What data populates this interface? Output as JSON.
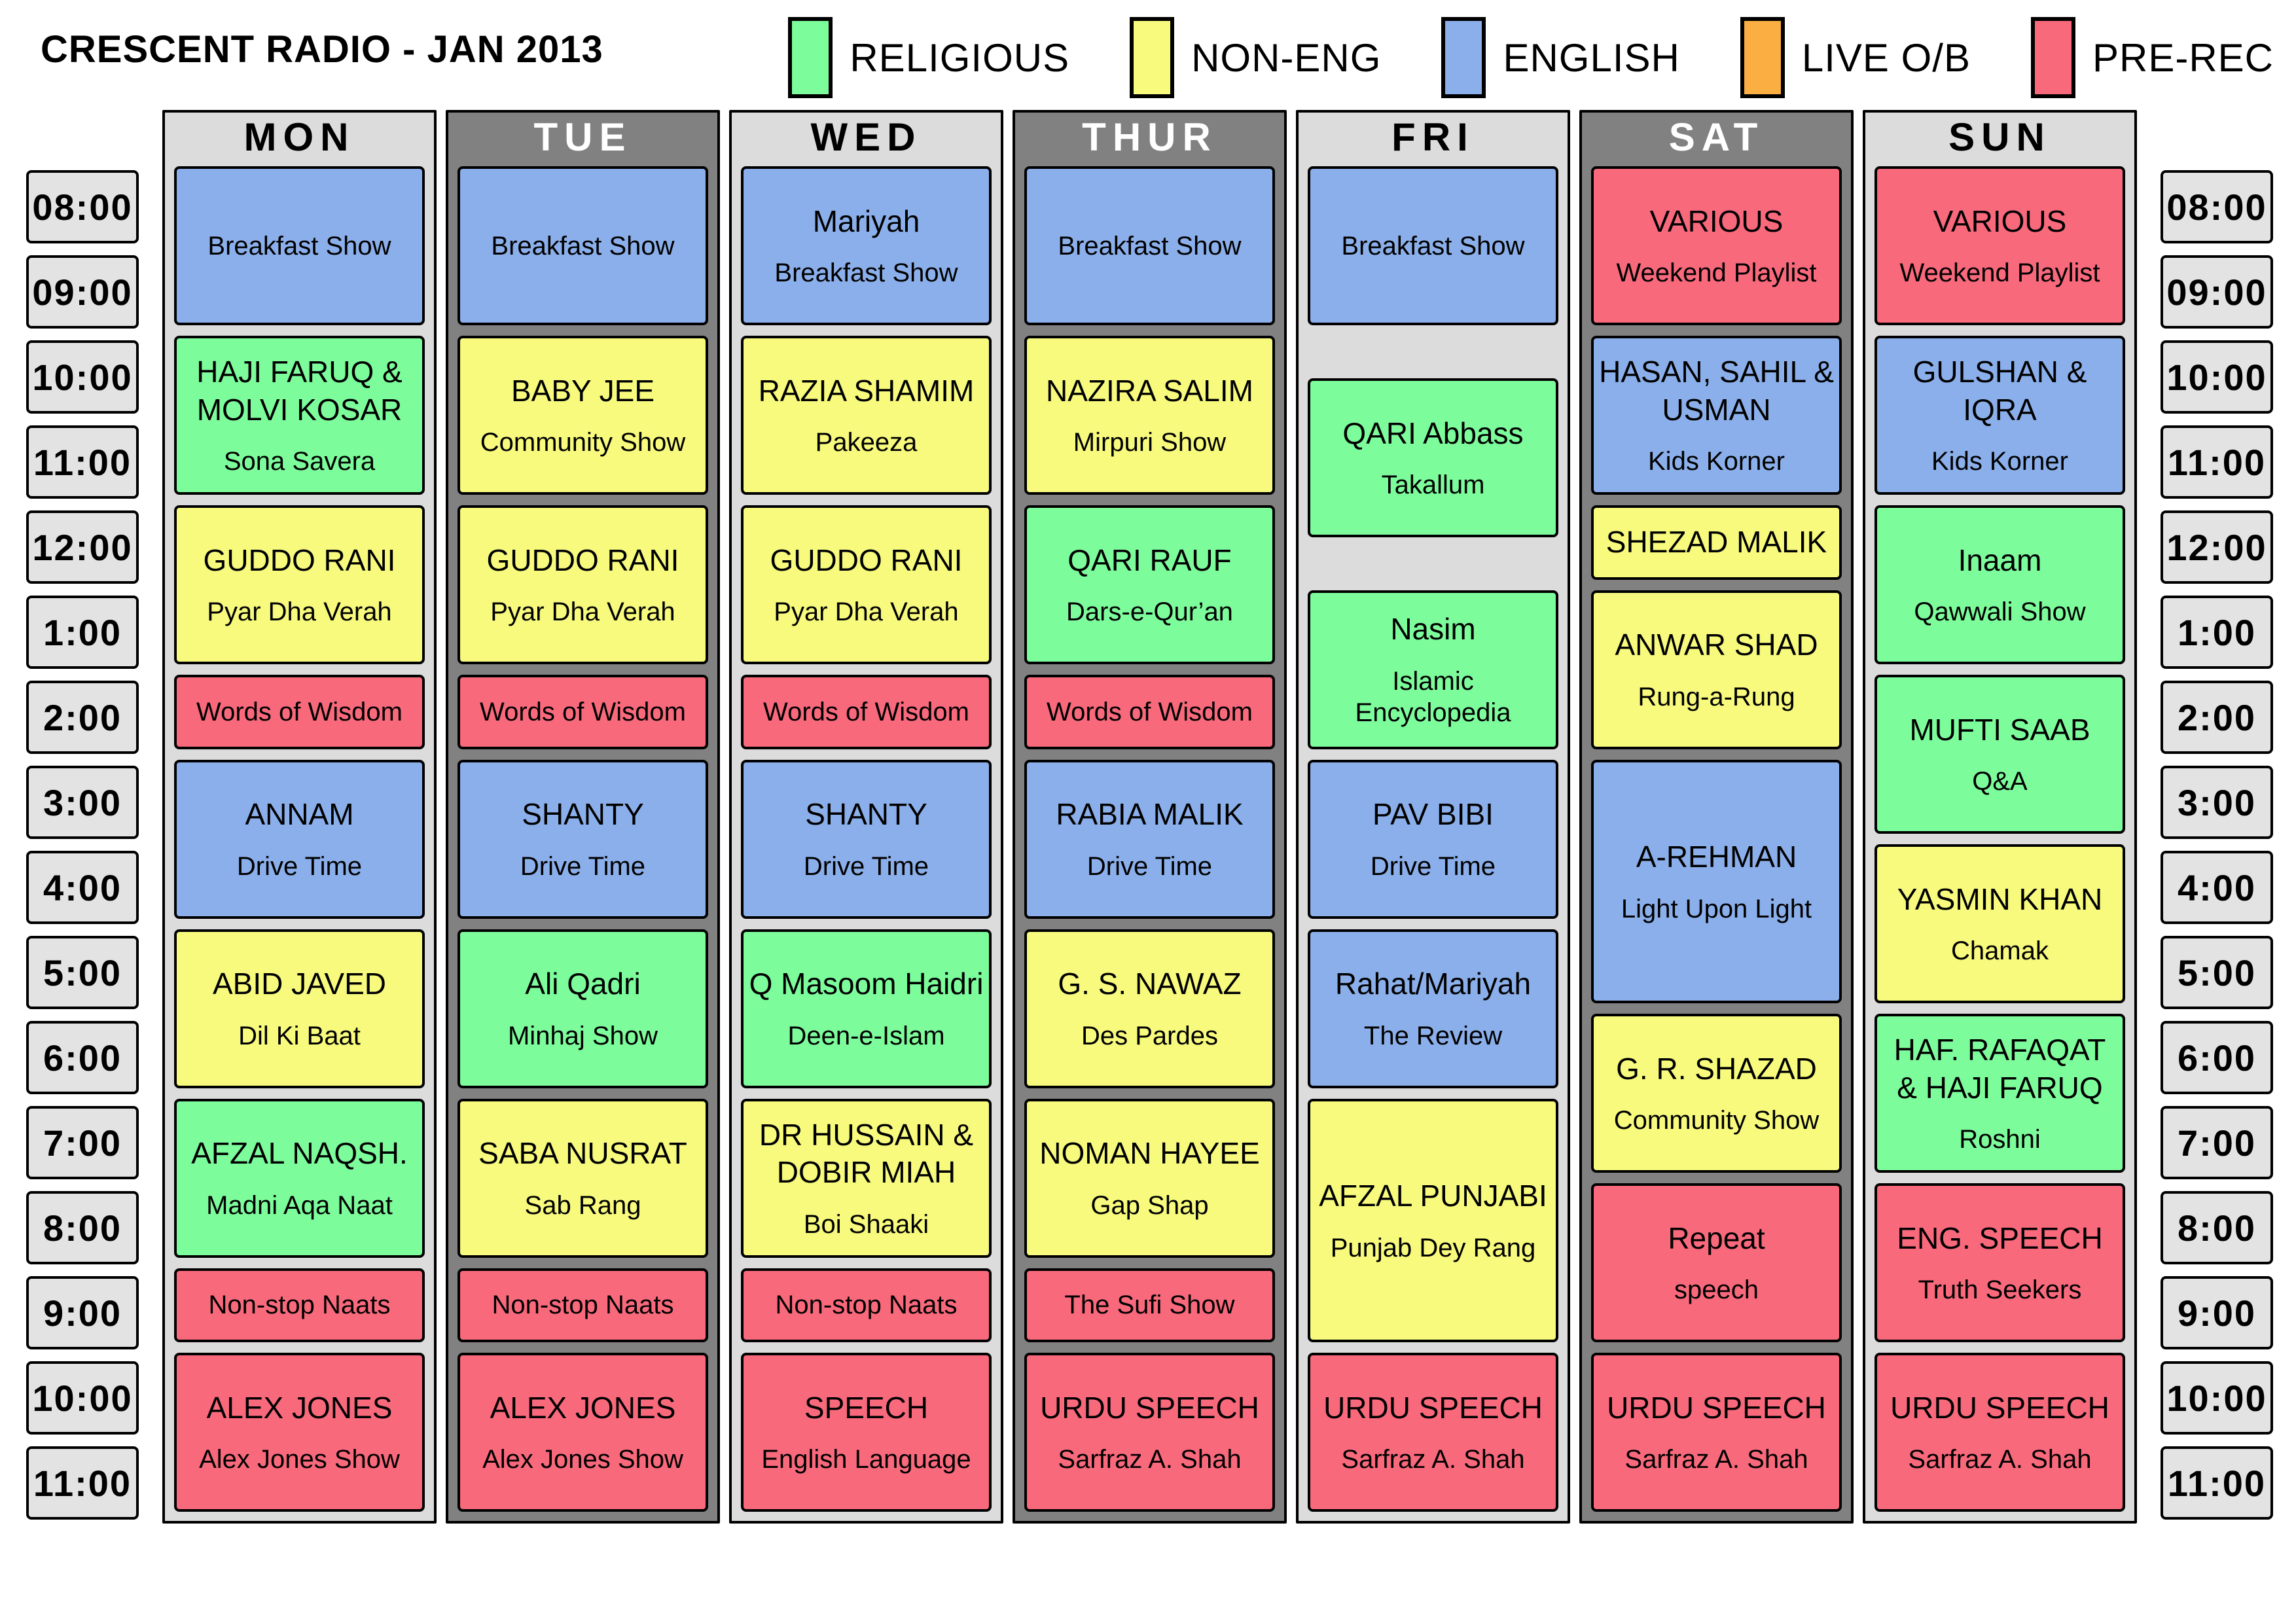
{
  "title": "CRESCENT RADIO - JAN 2013",
  "category_colors": {
    "religious": "#7DFC9C",
    "noneng": "#F7FA7D",
    "english": "#8BAFEA",
    "liveob": "#FBAF42",
    "prerec": "#F8697C"
  },
  "legend": [
    {
      "key": "religious",
      "label": "RELIGIOUS"
    },
    {
      "key": "noneng",
      "label": "NON-ENG"
    },
    {
      "key": "english",
      "label": "ENGLISH"
    },
    {
      "key": "liveob",
      "label": "LIVE O/B"
    },
    {
      "key": "prerec",
      "label": "PRE-REC"
    }
  ],
  "times": [
    "08:00",
    "09:00",
    "10:00",
    "11:00",
    "12:00",
    "1:00",
    "2:00",
    "3:00",
    "4:00",
    "5:00",
    "6:00",
    "7:00",
    "8:00",
    "9:00",
    "10:00",
    "11:00"
  ],
  "days": [
    {
      "label": "MON",
      "shade": "light",
      "shows": [
        {
          "name": "",
          "show": "Breakfast Show",
          "category": "english",
          "start": 1,
          "span": 4
        },
        {
          "name": "HAJI FARUQ & MOLVI KOSAR",
          "show": "Sona Savera",
          "category": "religious",
          "start": 5,
          "span": 4
        },
        {
          "name": "GUDDO RANI",
          "show": "Pyar Dha Verah",
          "category": "noneng",
          "start": 9,
          "span": 4
        },
        {
          "name": "",
          "show": "Words of Wisdom",
          "category": "prerec",
          "start": 13,
          "span": 2
        },
        {
          "name": "ANNAM",
          "show": "Drive Time",
          "category": "english",
          "start": 15,
          "span": 4
        },
        {
          "name": "ABID JAVED",
          "show": "Dil Ki Baat",
          "category": "noneng",
          "start": 19,
          "span": 4
        },
        {
          "name": "AFZAL NAQSH.",
          "show": "Madni Aqa Naat",
          "category": "religious",
          "start": 23,
          "span": 4
        },
        {
          "name": "",
          "show": "Non-stop Naats",
          "category": "prerec",
          "start": 27,
          "span": 2
        },
        {
          "name": "ALEX JONES",
          "show": "Alex Jones Show",
          "category": "prerec",
          "start": 29,
          "span": 4
        }
      ]
    },
    {
      "label": "TUE",
      "shade": "dark",
      "shows": [
        {
          "name": "",
          "show": "Breakfast Show",
          "category": "english",
          "start": 1,
          "span": 4
        },
        {
          "name": "BABY JEE",
          "show": "Community Show",
          "category": "noneng",
          "start": 5,
          "span": 4
        },
        {
          "name": "GUDDO RANI",
          "show": "Pyar Dha Verah",
          "category": "noneng",
          "start": 9,
          "span": 4
        },
        {
          "name": "",
          "show": "Words of Wisdom",
          "category": "prerec",
          "start": 13,
          "span": 2
        },
        {
          "name": "SHANTY",
          "show": "Drive Time",
          "category": "english",
          "start": 15,
          "span": 4
        },
        {
          "name": "Ali Qadri",
          "show": "Minhaj Show",
          "category": "religious",
          "start": 19,
          "span": 4
        },
        {
          "name": "SABA NUSRAT",
          "show": "Sab Rang",
          "category": "noneng",
          "start": 23,
          "span": 4
        },
        {
          "name": "",
          "show": "Non-stop Naats",
          "category": "prerec",
          "start": 27,
          "span": 2
        },
        {
          "name": "ALEX JONES",
          "show": "Alex Jones Show",
          "category": "prerec",
          "start": 29,
          "span": 4
        }
      ]
    },
    {
      "label": "WED",
      "shade": "light",
      "shows": [
        {
          "name": "Mariyah",
          "show": "Breakfast Show",
          "category": "english",
          "start": 1,
          "span": 4
        },
        {
          "name": "RAZIA SHAMIM",
          "show": "Pakeeza",
          "category": "noneng",
          "start": 5,
          "span": 4
        },
        {
          "name": "GUDDO RANI",
          "show": "Pyar Dha Verah",
          "category": "noneng",
          "start": 9,
          "span": 4
        },
        {
          "name": "",
          "show": "Words of Wisdom",
          "category": "prerec",
          "start": 13,
          "span": 2
        },
        {
          "name": "SHANTY",
          "show": "Drive Time",
          "category": "english",
          "start": 15,
          "span": 4
        },
        {
          "name": "Q Masoom Haidri",
          "show": "Deen-e-Islam",
          "category": "religious",
          "start": 19,
          "span": 4
        },
        {
          "name": "DR HUSSAIN & DOBIR MIAH",
          "show": "Boi Shaaki",
          "category": "noneng",
          "start": 23,
          "span": 4
        },
        {
          "name": "",
          "show": "Non-stop Naats",
          "category": "prerec",
          "start": 27,
          "span": 2
        },
        {
          "name": "SPEECH",
          "show": "English Language",
          "category": "prerec",
          "start": 29,
          "span": 4
        }
      ]
    },
    {
      "label": "THUR",
      "shade": "dark",
      "shows": [
        {
          "name": "",
          "show": "Breakfast Show",
          "category": "english",
          "start": 1,
          "span": 4
        },
        {
          "name": "NAZIRA SALIM",
          "show": "Mirpuri Show",
          "category": "noneng",
          "start": 5,
          "span": 4
        },
        {
          "name": "QARI RAUF",
          "show": "Dars-e-Qur’an",
          "category": "religious",
          "start": 9,
          "span": 4
        },
        {
          "name": "",
          "show": "Words of Wisdom",
          "category": "prerec",
          "start": 13,
          "span": 2
        },
        {
          "name": "RABIA MALIK",
          "show": "Drive Time",
          "category": "english",
          "start": 15,
          "span": 4
        },
        {
          "name": "G. S. NAWAZ",
          "show": "Des Pardes",
          "category": "noneng",
          "start": 19,
          "span": 4
        },
        {
          "name": "NOMAN HAYEE",
          "show": "Gap Shap",
          "category": "noneng",
          "start": 23,
          "span": 4
        },
        {
          "name": "",
          "show": "The Sufi Show",
          "category": "prerec",
          "start": 27,
          "span": 2
        },
        {
          "name": "URDU SPEECH",
          "show": "Sarfraz A. Shah",
          "category": "prerec",
          "start": 29,
          "span": 4
        }
      ]
    },
    {
      "label": "FRI",
      "shade": "light",
      "shows": [
        {
          "name": "",
          "show": "Breakfast Show",
          "category": "english",
          "start": 1,
          "span": 4
        },
        {
          "name": "QARI Abbass",
          "show": "Takallum",
          "category": "religious",
          "start": 6,
          "span": 4
        },
        {
          "name": "Nasim",
          "show": "Islamic Encyclopedia",
          "category": "religious",
          "start": 11,
          "span": 4
        },
        {
          "name": "PAV BIBI",
          "show": "Drive Time",
          "category": "english",
          "start": 15,
          "span": 4
        },
        {
          "name": "Rahat/Mariyah",
          "show": "The Review",
          "category": "english",
          "start": 19,
          "span": 4
        },
        {
          "name": "AFZAL PUNJABI",
          "show": "Punjab Dey Rang",
          "category": "noneng",
          "start": 23,
          "span": 6
        },
        {
          "name": "URDU SPEECH",
          "show": "Sarfraz A. Shah",
          "category": "prerec",
          "start": 29,
          "span": 4
        }
      ]
    },
    {
      "label": "SAT",
      "shade": "dark",
      "shows": [
        {
          "name": "VARIOUS",
          "show": "Weekend Playlist",
          "category": "prerec",
          "start": 1,
          "span": 4
        },
        {
          "name": "HASAN, SAHIL & USMAN",
          "show": "Kids Korner",
          "category": "english",
          "start": 5,
          "span": 4
        },
        {
          "name": "SHEZAD MALIK",
          "show": "",
          "category": "noneng",
          "start": 9,
          "span": 2
        },
        {
          "name": "ANWAR SHAD",
          "show": "Rung-a-Rung",
          "category": "noneng",
          "start": 11,
          "span": 4
        },
        {
          "name": "A-REHMAN",
          "show": "Light Upon Light",
          "category": "english",
          "start": 15,
          "span": 6
        },
        {
          "name": "G. R. SHAZAD",
          "show": "Community Show",
          "category": "noneng",
          "start": 21,
          "span": 4
        },
        {
          "name": "Repeat",
          "show": "speech",
          "category": "prerec",
          "start": 25,
          "span": 4
        },
        {
          "name": "URDU SPEECH",
          "show": "Sarfraz A. Shah",
          "category": "prerec",
          "start": 29,
          "span": 4
        }
      ]
    },
    {
      "label": "SUN",
      "shade": "light",
      "shows": [
        {
          "name": "VARIOUS",
          "show": "Weekend Playlist",
          "category": "prerec",
          "start": 1,
          "span": 4
        },
        {
          "name": "GULSHAN & IQRA",
          "show": "Kids Korner",
          "category": "english",
          "start": 5,
          "span": 4
        },
        {
          "name": "Inaam",
          "show": "Qawwali Show",
          "category": "religious",
          "start": 9,
          "span": 4
        },
        {
          "name": "MUFTI SAAB",
          "show": "Q&A",
          "category": "religious",
          "start": 13,
          "span": 4
        },
        {
          "name": "YASMIN KHAN",
          "show": "Chamak",
          "category": "noneng",
          "start": 17,
          "span": 4
        },
        {
          "name": "HAF. RAFAQAT & HAJI FARUQ",
          "show": "Roshni",
          "category": "religious",
          "start": 21,
          "span": 4
        },
        {
          "name": "ENG. SPEECH",
          "show": "Truth Seekers",
          "category": "prerec",
          "start": 25,
          "span": 4
        },
        {
          "name": "URDU SPEECH",
          "show": "Sarfraz A. Shah",
          "category": "prerec",
          "start": 29,
          "span": 4
        }
      ]
    }
  ]
}
